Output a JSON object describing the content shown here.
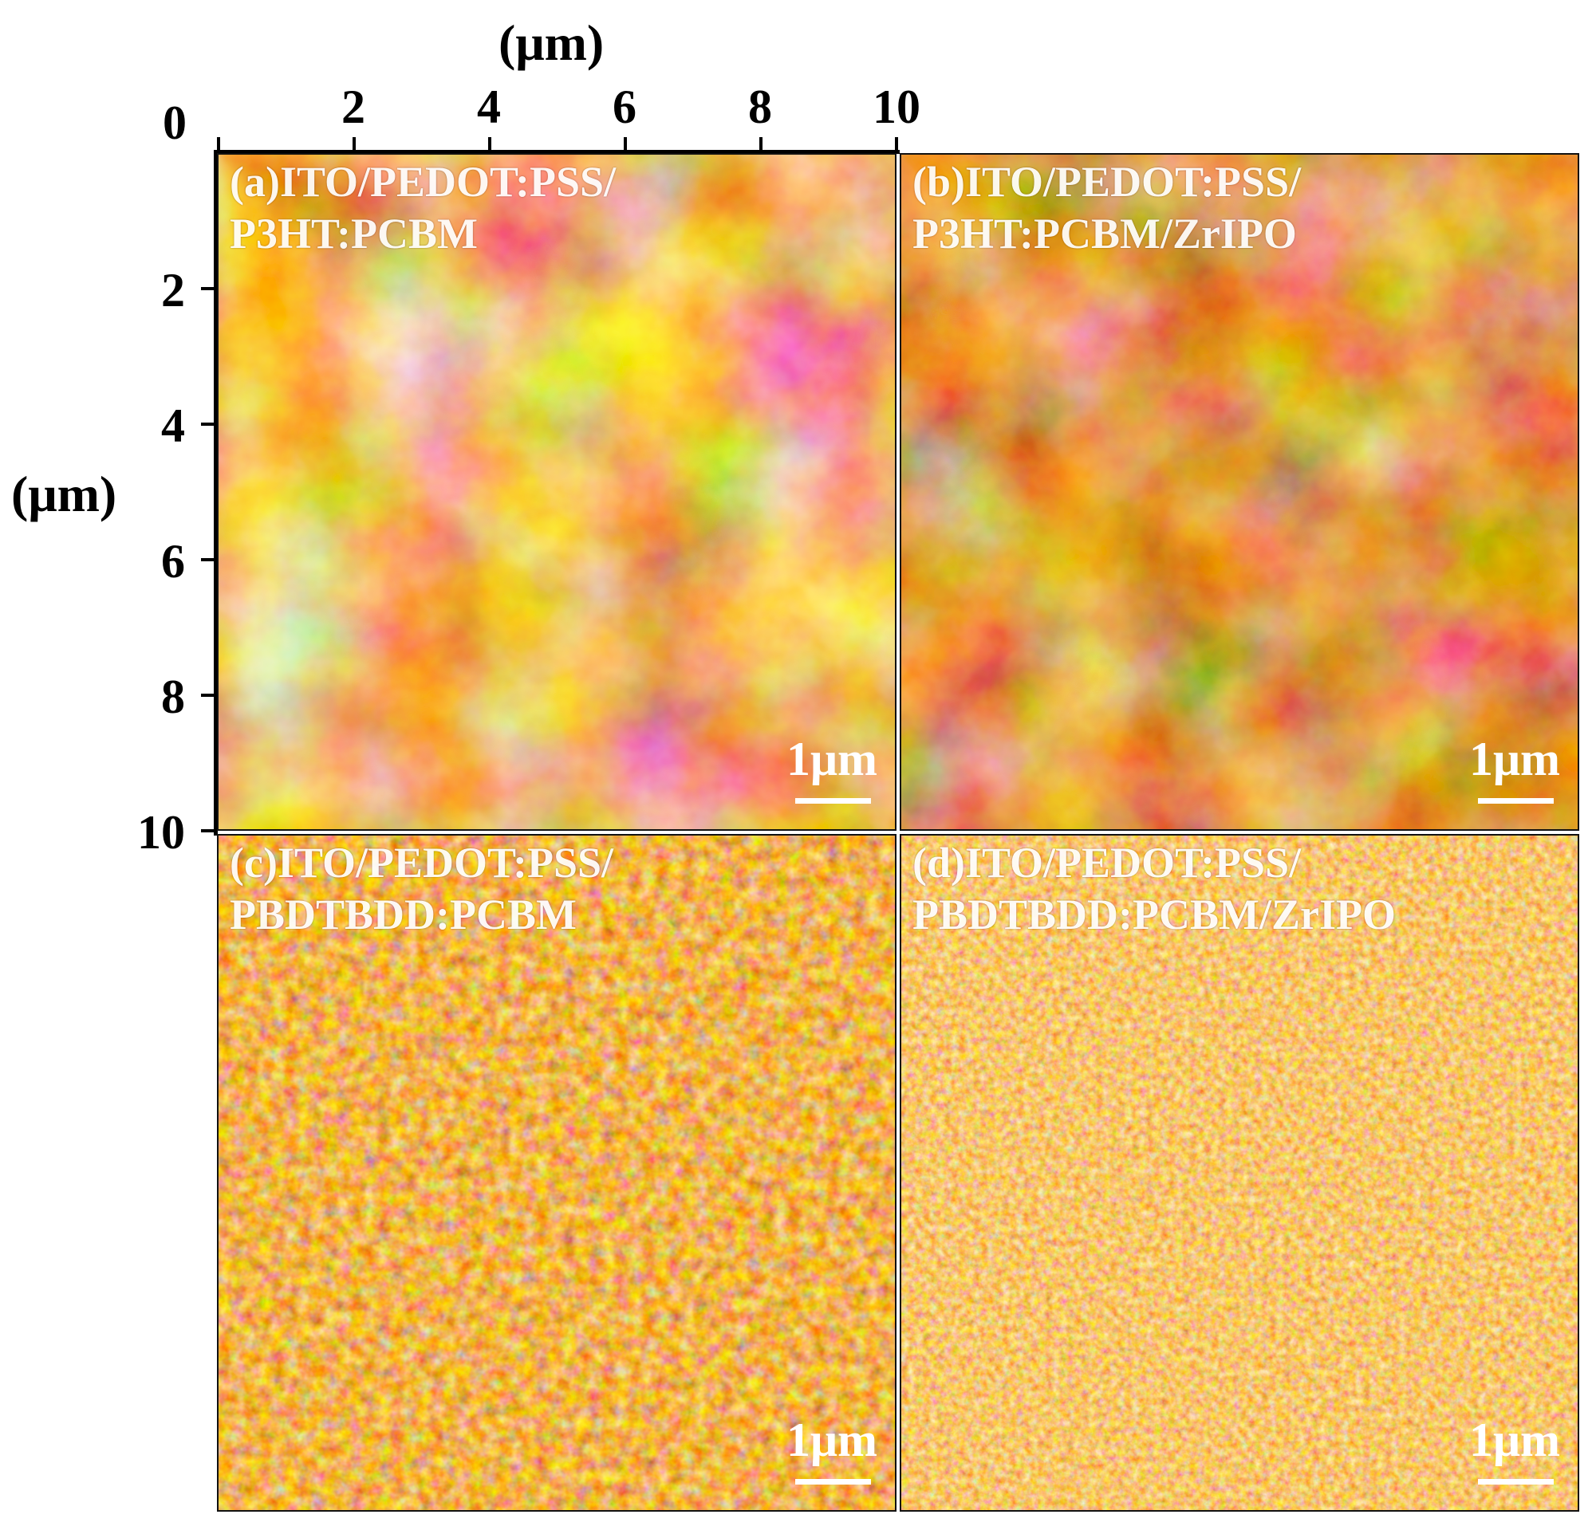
{
  "axes": {
    "x_title": "(μm)",
    "y_title": "(μm)",
    "x_ticks": [
      "0",
      "2",
      "4",
      "6",
      "8",
      "10"
    ],
    "y_ticks": [
      "2",
      "4",
      "6",
      "8",
      "10"
    ]
  },
  "panels": [
    {
      "id": "a",
      "label_line1": "(a)ITO/PEDOT:PSS/",
      "label_line2": "P3HT:PCBM",
      "scale": "1μm",
      "base_color": "#c8621a"
    },
    {
      "id": "b",
      "label_line1": "(b)ITO/PEDOT:PSS/",
      "label_line2": "P3HT:PCBM/ZrIPO",
      "scale": "1μm",
      "base_color": "#b24c12"
    },
    {
      "id": "c",
      "label_line1": "(c)ITO/PEDOT:PSS/",
      "label_line2": "PBDTBDD:PCBM",
      "scale": "1μm",
      "base_color": "#c05a14"
    },
    {
      "id": "d",
      "label_line1": "(d)ITO/PEDOT:PSS/",
      "label_line2": "PBDTBDD:PCBM/ZrIPO",
      "scale": "1μm",
      "base_color": "#d07426"
    }
  ]
}
